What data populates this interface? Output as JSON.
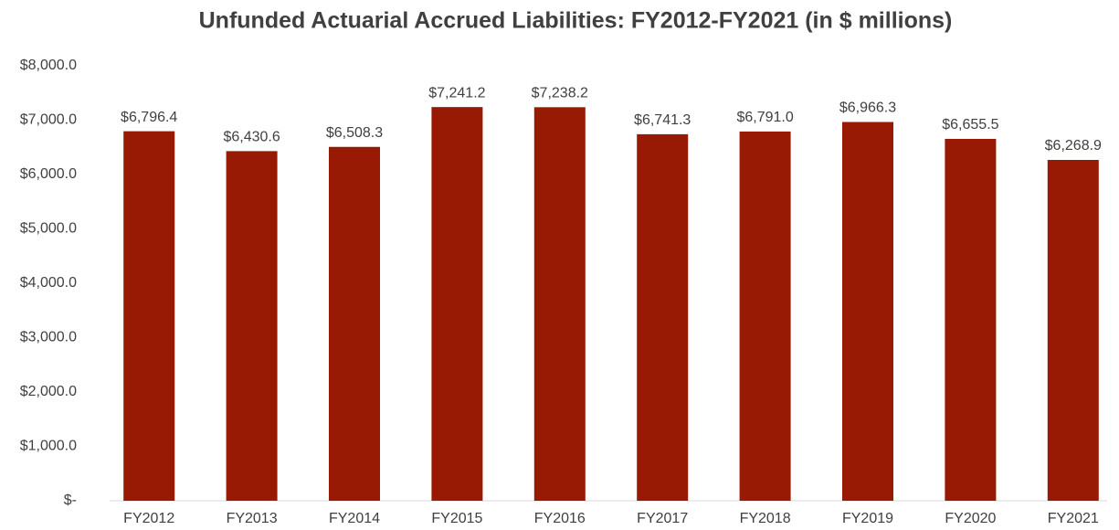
{
  "chart_data": {
    "type": "bar",
    "title": "Unfunded Actuarial Accrued Liabilities: FY2012-FY2021 (in $ millions)",
    "categories": [
      "FY2012",
      "FY2013",
      "FY2014",
      "FY2015",
      "FY2016",
      "FY2017",
      "FY2018",
      "FY2019",
      "FY2020",
      "FY2021"
    ],
    "values": [
      6796.4,
      6430.6,
      6508.3,
      7241.2,
      7238.2,
      6741.3,
      6791.0,
      6966.3,
      6655.5,
      6268.9
    ],
    "value_labels": [
      "$6,796.4",
      "$6,430.6",
      "$6,508.3",
      "$7,241.2",
      "$7,238.2",
      "$6,741.3",
      "$6,791.0",
      "$6,966.3",
      "$6,655.5",
      "$6,268.9"
    ],
    "color": "#981a04",
    "ylim": [
      0,
      8000
    ],
    "yticks": [
      {
        "value": 0,
        "label": "$-"
      },
      {
        "value": 1000,
        "label": "$1,000.0"
      },
      {
        "value": 2000,
        "label": "$2,000.0"
      },
      {
        "value": 3000,
        "label": "$3,000.0"
      },
      {
        "value": 4000,
        "label": "$4,000.0"
      },
      {
        "value": 5000,
        "label": "$5,000.0"
      },
      {
        "value": 6000,
        "label": "$6,000.0"
      },
      {
        "value": 7000,
        "label": "$7,000.0"
      },
      {
        "value": 8000,
        "label": "$8,000.0"
      }
    ],
    "grid": false
  }
}
